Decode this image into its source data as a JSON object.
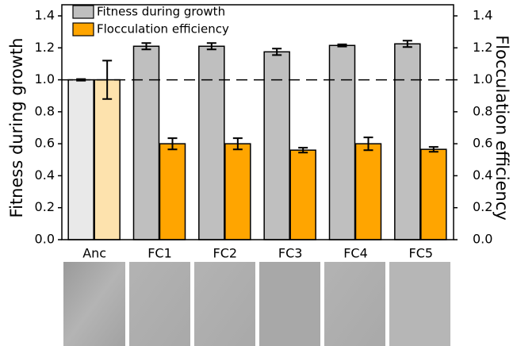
{
  "chart_data": {
    "type": "bar",
    "y_label": "Fitness during growth",
    "y2_label": "Flocculation efficiency",
    "categories": [
      "Anc",
      "FC1",
      "FC2",
      "FC3",
      "FC4",
      "FC5"
    ],
    "series": [
      {
        "name": "Fitness during growth",
        "color": "#bfbfbf",
        "point_colors": [
          "#e9e9e9",
          "#bfbfbf",
          "#bfbfbf",
          "#bfbfbf",
          "#bfbfbf",
          "#bfbfbf"
        ],
        "values": [
          1.0,
          1.21,
          1.21,
          1.175,
          1.215,
          1.225
        ],
        "errors": [
          0.005,
          0.02,
          0.02,
          0.02,
          0.007,
          0.02
        ]
      },
      {
        "name": "Flocculation efficiency",
        "color": "#ffa500",
        "axis": "y2",
        "point_colors": [
          "#fde2ad",
          "#ffa500",
          "#ffa500",
          "#ffa500",
          "#ffa500",
          "#ffa500"
        ],
        "values": [
          1.0,
          0.6,
          0.6,
          0.56,
          0.6,
          0.565
        ],
        "errors": [
          0.12,
          0.035,
          0.035,
          0.015,
          0.04,
          0.015
        ]
      }
    ],
    "ylim": [
      0,
      1.4
    ],
    "yticks": [
      {
        "value": 0,
        "label": "0.0"
      },
      0.2,
      0.4,
      0.6,
      0.8,
      {
        "value": 1,
        "label": "1.0"
      },
      1.2,
      1.4
    ],
    "y2lim": [
      0,
      1.4
    ],
    "y2ticks": [
      {
        "value": 0,
        "label": "0.0"
      },
      0.2,
      0.4,
      0.6,
      0.8,
      {
        "value": 1,
        "label": "1.0"
      },
      1.2,
      1.4
    ],
    "reference_line": 1,
    "legend": "upper left"
  }
}
